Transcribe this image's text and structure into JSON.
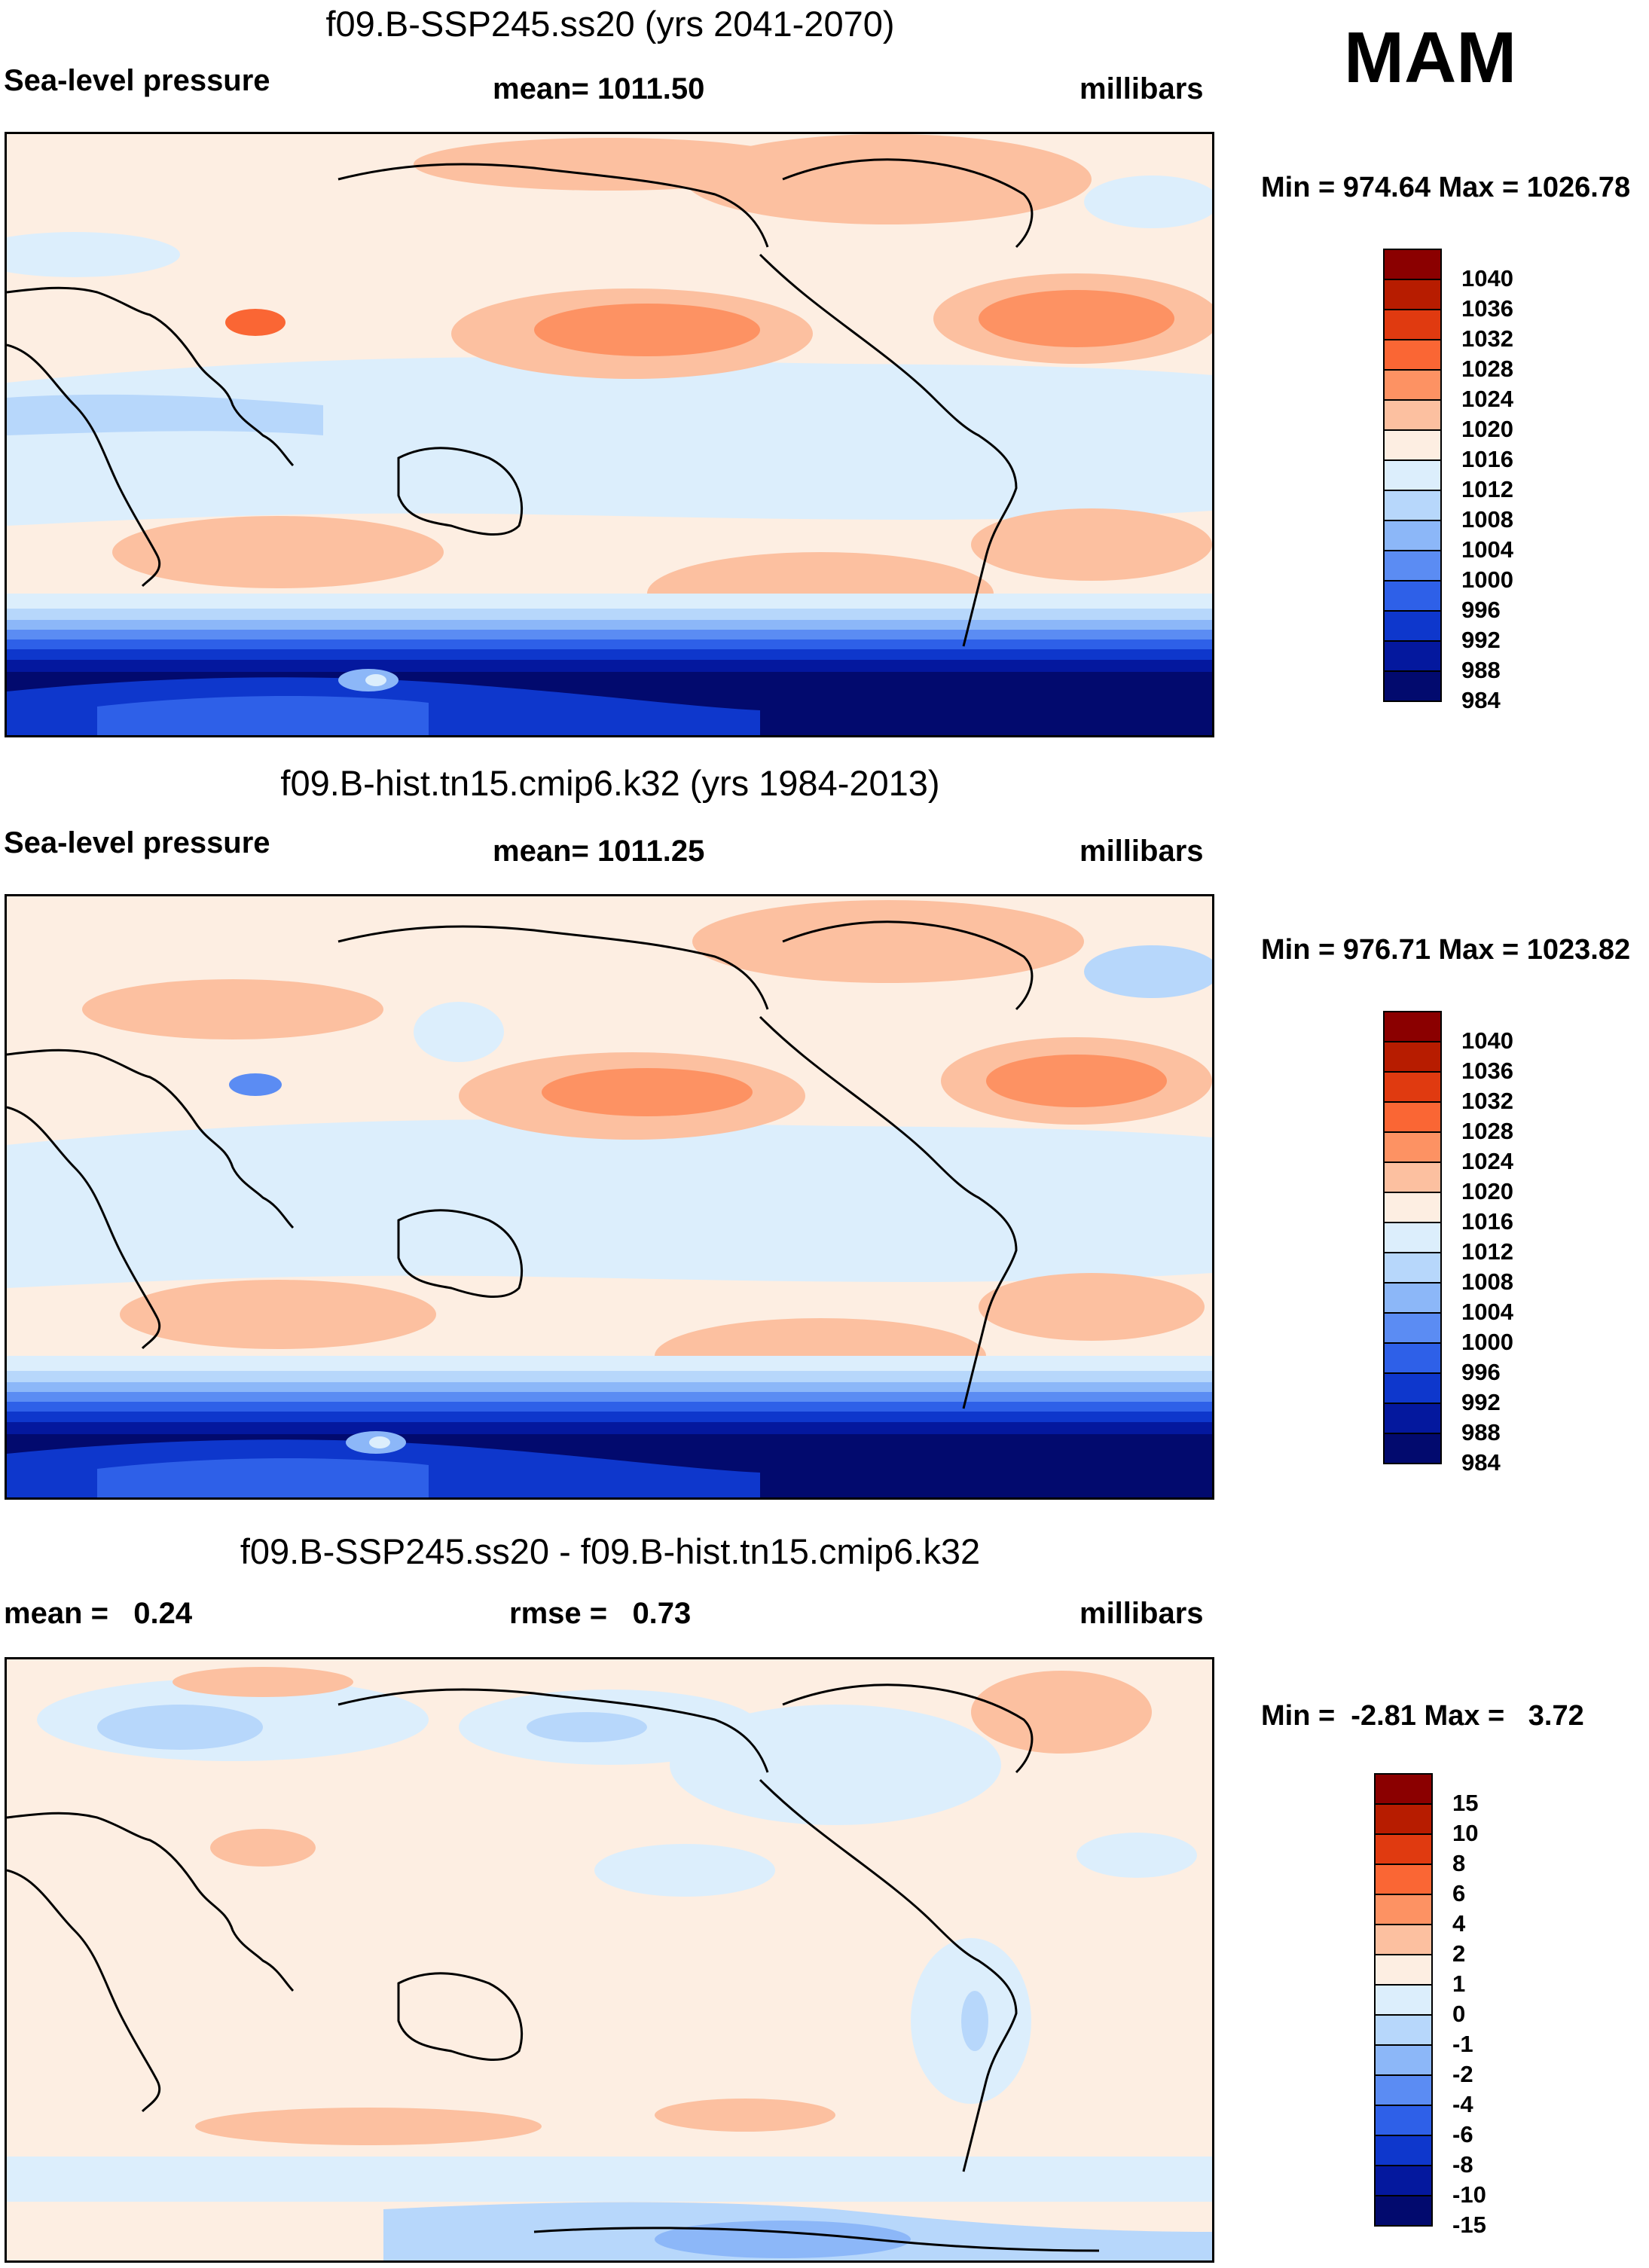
{
  "season": "MAM",
  "panels": [
    {
      "id": "future",
      "title": "f09.B-SSP245.ss20 (yrs 2041-2070)",
      "left_label": "Sea-level pressure",
      "center_label": "mean= 1011.50",
      "right_label": "millibars",
      "min_max": "Min = 974.64 Max = 1026.78",
      "colorbar": {
        "colors": [
          "#8b0000",
          "#b71c00",
          "#e03a10",
          "#fa6634",
          "#fd9263",
          "#fcc0a0",
          "#fdeee2",
          "#dceefc",
          "#b7d7fb",
          "#8cb7f8",
          "#5b8cf3",
          "#2e60e8",
          "#0e37cc",
          "#04189e",
          "#020a6e"
        ],
        "labels": [
          "1040",
          "1036",
          "1032",
          "1028",
          "1024",
          "1020",
          "1016",
          "1012",
          "1008",
          "1004",
          "1000",
          "996",
          "992",
          "988",
          "984"
        ]
      }
    },
    {
      "id": "historical",
      "title": "f09.B-hist.tn15.cmip6.k32 (yrs 1984-2013)",
      "left_label": "Sea-level pressure",
      "center_label": "mean= 1011.25",
      "right_label": "millibars",
      "min_max": "Min = 976.71 Max = 1023.82",
      "colorbar": {
        "colors": [
          "#8b0000",
          "#b71c00",
          "#e03a10",
          "#fa6634",
          "#fd9263",
          "#fcc0a0",
          "#fdeee2",
          "#dceefc",
          "#b7d7fb",
          "#8cb7f8",
          "#5b8cf3",
          "#2e60e8",
          "#0e37cc",
          "#04189e",
          "#020a6e"
        ],
        "labels": [
          "1040",
          "1036",
          "1032",
          "1028",
          "1024",
          "1020",
          "1016",
          "1012",
          "1008",
          "1004",
          "1000",
          "996",
          "992",
          "988",
          "984"
        ]
      }
    },
    {
      "id": "difference",
      "title": "f09.B-SSP245.ss20 - f09.B-hist.tn15.cmip6.k32",
      "left_label": "mean =   0.24",
      "center_label": "rmse =   0.73",
      "right_label": "millibars",
      "min_max": "Min =  -2.81 Max =   3.72",
      "colorbar": {
        "colors": [
          "#8b0000",
          "#b71c00",
          "#e03a10",
          "#fa6634",
          "#fd9263",
          "#fcc0a0",
          "#fdeee2",
          "#dceefc",
          "#b7d7fb",
          "#8cb7f8",
          "#5b8cf3",
          "#2e60e8",
          "#0e37cc",
          "#04189e",
          "#020a6e"
        ],
        "labels": [
          "15",
          "10",
          "8",
          "6",
          "4",
          "2",
          "1",
          "0",
          "-1",
          "-2",
          "-4",
          "-6",
          "-8",
          "-10",
          "-15"
        ]
      }
    }
  ]
}
